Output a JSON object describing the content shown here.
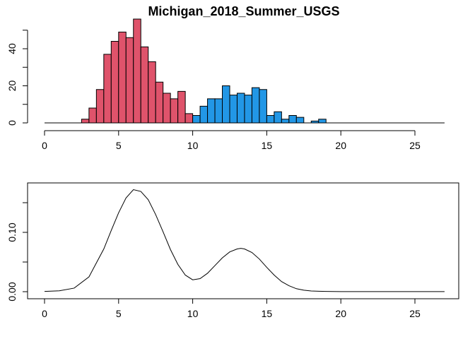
{
  "chart_data": [
    {
      "type": "bar",
      "title": "Michigan_2018_Summer_USGS",
      "xlabel": "",
      "ylabel": "",
      "xlim": [
        0,
        27
      ],
      "ylim": [
        0,
        55
      ],
      "bin_width": 0.5,
      "x_ticks": [
        0,
        5,
        10,
        15,
        20,
        25
      ],
      "y_ticks": [
        0,
        20,
        40
      ],
      "colors": {
        "group_low": "#DF536B",
        "group_high": "#2297E6",
        "outline": "#000000"
      },
      "series": [
        {
          "color": "#DF536B",
          "bins": [
            {
              "x0": 2.5,
              "x1": 3.0,
              "count": 2
            },
            {
              "x0": 3.0,
              "x1": 3.5,
              "count": 8
            },
            {
              "x0": 3.5,
              "x1": 4.0,
              "count": 18
            },
            {
              "x0": 4.0,
              "x1": 4.5,
              "count": 37
            },
            {
              "x0": 4.5,
              "x1": 5.0,
              "count": 44
            },
            {
              "x0": 5.0,
              "x1": 5.5,
              "count": 49
            },
            {
              "x0": 5.5,
              "x1": 6.0,
              "count": 46
            },
            {
              "x0": 6.0,
              "x1": 6.5,
              "count": 56
            },
            {
              "x0": 6.5,
              "x1": 7.0,
              "count": 41
            },
            {
              "x0": 7.0,
              "x1": 7.5,
              "count": 33
            },
            {
              "x0": 7.5,
              "x1": 8.0,
              "count": 22
            },
            {
              "x0": 8.0,
              "x1": 8.5,
              "count": 16
            },
            {
              "x0": 8.5,
              "x1": 9.0,
              "count": 13
            },
            {
              "x0": 9.0,
              "x1": 9.5,
              "count": 17
            },
            {
              "x0": 9.5,
              "x1": 10.0,
              "count": 5
            }
          ]
        },
        {
          "color": "#2297E6",
          "bins": [
            {
              "x0": 10.0,
              "x1": 10.5,
              "count": 4
            },
            {
              "x0": 10.5,
              "x1": 11.0,
              "count": 9
            },
            {
              "x0": 11.0,
              "x1": 11.5,
              "count": 13
            },
            {
              "x0": 11.5,
              "x1": 12.0,
              "count": 13
            },
            {
              "x0": 12.0,
              "x1": 12.5,
              "count": 20
            },
            {
              "x0": 12.5,
              "x1": 13.0,
              "count": 15
            },
            {
              "x0": 13.0,
              "x1": 13.5,
              "count": 16
            },
            {
              "x0": 13.5,
              "x1": 14.0,
              "count": 15
            },
            {
              "x0": 14.0,
              "x1": 14.5,
              "count": 19
            },
            {
              "x0": 14.5,
              "x1": 15.0,
              "count": 18
            },
            {
              "x0": 15.0,
              "x1": 15.5,
              "count": 4
            },
            {
              "x0": 15.5,
              "x1": 16.0,
              "count": 6
            },
            {
              "x0": 16.0,
              "x1": 16.5,
              "count": 2
            },
            {
              "x0": 16.5,
              "x1": 17.0,
              "count": 4
            },
            {
              "x0": 17.0,
              "x1": 17.5,
              "count": 3
            },
            {
              "x0": 17.5,
              "x1": 18.0,
              "count": 0
            },
            {
              "x0": 18.0,
              "x1": 18.5,
              "count": 1
            },
            {
              "x0": 18.5,
              "x1": 19.0,
              "count": 2
            }
          ]
        }
      ],
      "baseline": [
        0,
        27
      ]
    },
    {
      "type": "line",
      "title": "",
      "xlabel": "",
      "ylabel": "",
      "xlim": [
        0,
        27
      ],
      "ylim": [
        0,
        0.17
      ],
      "x_ticks": [
        0,
        5,
        10,
        15,
        20,
        25
      ],
      "y_ticks": [
        0.0,
        0.1
      ],
      "y_tick_labels": [
        "0.00",
        "0.10"
      ],
      "line_color": "#000000",
      "density": {
        "x": [
          0,
          1,
          2,
          3,
          4,
          4.5,
          5,
          5.5,
          6,
          6.5,
          7,
          7.5,
          8,
          8.5,
          9,
          9.5,
          10,
          10.5,
          11,
          11.5,
          12,
          12.5,
          13,
          13.25,
          13.5,
          14,
          14.5,
          15,
          15.5,
          16,
          16.5,
          17,
          17.5,
          18,
          18.5,
          19,
          20,
          22,
          25,
          27
        ],
        "y": [
          0.0005,
          0.0015,
          0.006,
          0.025,
          0.072,
          0.103,
          0.133,
          0.158,
          0.172,
          0.169,
          0.155,
          0.13,
          0.101,
          0.071,
          0.046,
          0.028,
          0.02,
          0.022,
          0.031,
          0.044,
          0.057,
          0.067,
          0.072,
          0.073,
          0.072,
          0.066,
          0.055,
          0.041,
          0.028,
          0.017,
          0.01,
          0.005,
          0.0025,
          0.0012,
          0.0007,
          0.0004,
          0.0002,
          0.0001,
          0.0001,
          0.0001
        ]
      }
    }
  ]
}
